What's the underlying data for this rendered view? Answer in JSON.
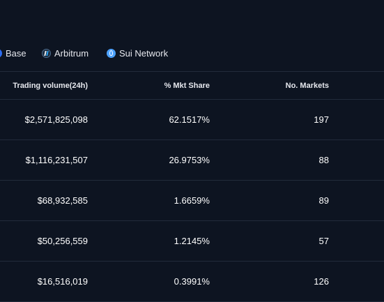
{
  "network_tabs": [
    {
      "label": "Base",
      "icon": "base-icon"
    },
    {
      "label": "Arbitrum",
      "icon": "arbitrum-icon"
    },
    {
      "label": "Sui Network",
      "icon": "sui-network-icon"
    }
  ],
  "table": {
    "headers": {
      "volume": "Trading volume(24h)",
      "share": "% Mkt Share",
      "markets": "No. Markets"
    },
    "rows": [
      {
        "volume": "$2,571,825,098",
        "share": "62.1517%",
        "markets": "197"
      },
      {
        "volume": "$1,116,231,507",
        "share": "26.9753%",
        "markets": "88"
      },
      {
        "volume": "$68,932,585",
        "share": "1.6659%",
        "markets": "89"
      },
      {
        "volume": "$50,256,559",
        "share": "1.2145%",
        "markets": "57"
      },
      {
        "volume": "$16,516,019",
        "share": "0.3991%",
        "markets": "126"
      }
    ]
  },
  "colors": {
    "background": "#0d1421",
    "divider": "#222b3b",
    "sui_blue": "#4da2ff",
    "base_blue": "#2d6cf0"
  }
}
